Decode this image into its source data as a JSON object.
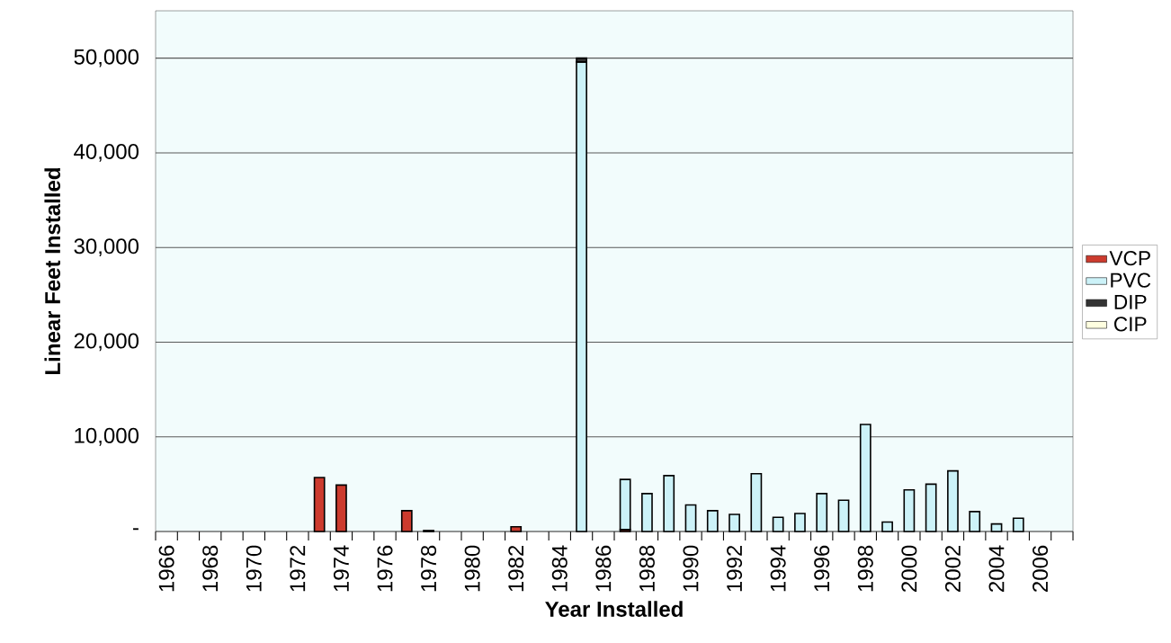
{
  "chart_data": {
    "type": "bar",
    "stacked": true,
    "xlabel": "Year Installed",
    "ylabel": "Linear Feet Installed",
    "categories": [
      "1966",
      null,
      "1968",
      null,
      "1970",
      null,
      "1972",
      null,
      "1974",
      null,
      "1976",
      null,
      "1978",
      null,
      "1980",
      null,
      "1982",
      null,
      "1984",
      null,
      "1986",
      null,
      "1988",
      null,
      "1990",
      null,
      "1992",
      null,
      "1994",
      null,
      "1996",
      null,
      "1998",
      null,
      "2000",
      null,
      "2002",
      null,
      "2004",
      null,
      "2006",
      null
    ],
    "series": [
      {
        "name": "VCP",
        "color": "#cc3b2e",
        "values": [
          null,
          null,
          null,
          null,
          null,
          null,
          null,
          5700,
          4900,
          null,
          null,
          2200,
          100,
          null,
          null,
          null,
          500,
          null,
          null,
          null,
          null,
          200,
          null,
          null,
          null,
          null,
          null,
          null,
          null,
          null,
          null,
          null,
          null,
          null,
          null,
          null,
          null,
          null,
          null,
          null,
          null,
          null
        ]
      },
      {
        "name": "PVC",
        "color": "#ccf2f8",
        "values": [
          null,
          null,
          null,
          null,
          null,
          null,
          null,
          null,
          null,
          null,
          null,
          null,
          null,
          null,
          null,
          null,
          null,
          null,
          null,
          49600,
          null,
          5300,
          4000,
          5900,
          2800,
          2200,
          1800,
          6100,
          1500,
          1900,
          4000,
          3300,
          11300,
          1000,
          4400,
          5000,
          6400,
          2100,
          800,
          1400,
          null,
          null
        ]
      },
      {
        "name": "DIP",
        "color": "#333333",
        "values": [
          null,
          null,
          null,
          null,
          null,
          null,
          null,
          null,
          null,
          null,
          null,
          null,
          null,
          null,
          null,
          null,
          null,
          null,
          null,
          400,
          null,
          null,
          null,
          null,
          null,
          null,
          null,
          null,
          null,
          null,
          null,
          null,
          null,
          null,
          null,
          null,
          null,
          null,
          null,
          null,
          null,
          null
        ]
      },
      {
        "name": "CIP",
        "color": "#ffffe0",
        "values": [
          null,
          null,
          null,
          null,
          null,
          null,
          null,
          null,
          null,
          null,
          null,
          null,
          null,
          null,
          null,
          null,
          null,
          null,
          null,
          null,
          null,
          null,
          null,
          null,
          null,
          null,
          null,
          null,
          null,
          null,
          null,
          null,
          null,
          null,
          null,
          null,
          null,
          null,
          null,
          null,
          null,
          null
        ]
      }
    ],
    "ylim": [
      0,
      55000
    ],
    "yticks": [
      {
        "value": 0,
        "label": "-"
      },
      {
        "value": 10000,
        "label": "10,000"
      },
      {
        "value": 20000,
        "label": "20,000"
      },
      {
        "value": 30000,
        "label": "30,000"
      },
      {
        "value": 40000,
        "label": "40,000"
      },
      {
        "value": 50000,
        "label": "50,000"
      }
    ],
    "grid": "y",
    "legend": "right"
  }
}
